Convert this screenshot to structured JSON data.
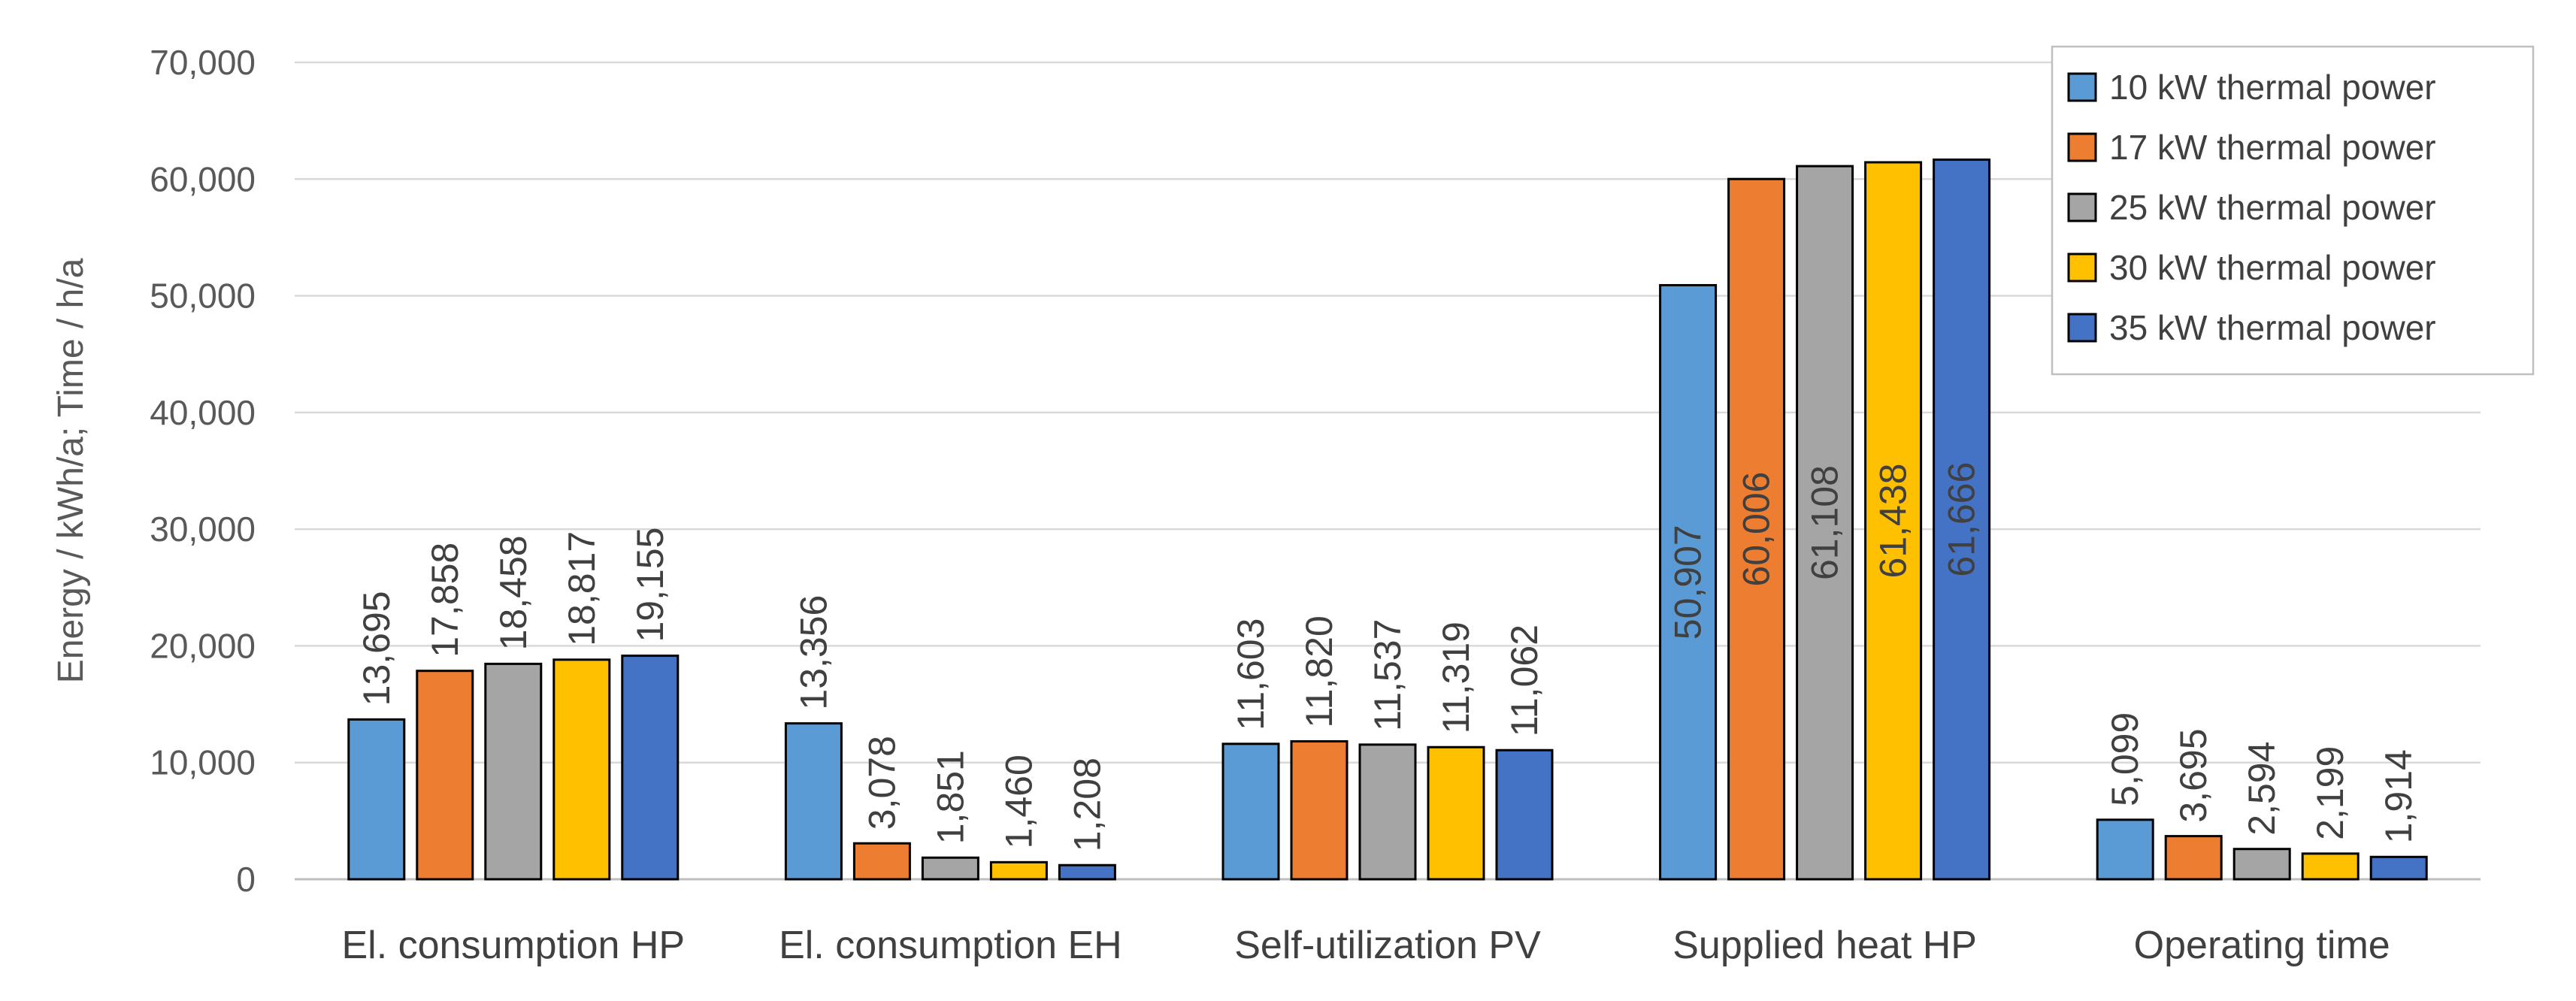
{
  "chart_data": {
    "type": "bar",
    "title": "",
    "xlabel": "",
    "ylabel": "Energy / kWh/a; Time / h/a",
    "ylim": [
      0,
      70000
    ],
    "yticks": [
      0,
      10000,
      20000,
      30000,
      40000,
      50000,
      60000,
      70000
    ],
    "ytick_labels": [
      "0",
      "10,000",
      "20,000",
      "30,000",
      "40,000",
      "50,000",
      "60,000",
      "70,000"
    ],
    "grid": true,
    "legend_position": "top-right",
    "categories": [
      "El. consumption HP",
      "El. consumption EH",
      "Self-utilization PV",
      "Supplied heat HP",
      "Operating time"
    ],
    "series": [
      {
        "name": "10 kW thermal power",
        "color": "#5B9BD5",
        "values": [
          13695,
          13356,
          11603,
          50907,
          5099
        ],
        "labels": [
          "13,695",
          "13,356",
          "11,603",
          "50,907",
          "5,099"
        ]
      },
      {
        "name": "17 kW thermal power",
        "color": "#ED7D31",
        "values": [
          17858,
          3078,
          11820,
          60006,
          3695
        ],
        "labels": [
          "17,858",
          "3,078",
          "11,820",
          "60,006",
          "3,695"
        ]
      },
      {
        "name": "25 kW thermal power",
        "color": "#A5A5A5",
        "values": [
          18458,
          1851,
          11537,
          61108,
          2594
        ],
        "labels": [
          "18,458",
          "1,851",
          "11,537",
          "61,108",
          "2,594"
        ]
      },
      {
        "name": "30 kW thermal power",
        "color": "#FFC000",
        "values": [
          18817,
          1460,
          11319,
          61438,
          2199
        ],
        "labels": [
          "18,817",
          "1,460",
          "11,319",
          "61,438",
          "2,199"
        ]
      },
      {
        "name": "35 kW thermal power",
        "color": "#4472C4",
        "values": [
          19155,
          1208,
          11062,
          61666,
          1914
        ],
        "labels": [
          "19,155",
          "1,208",
          "11,062",
          "61,666",
          "1,914"
        ]
      }
    ],
    "label_inside_categories": [
      3
    ]
  }
}
